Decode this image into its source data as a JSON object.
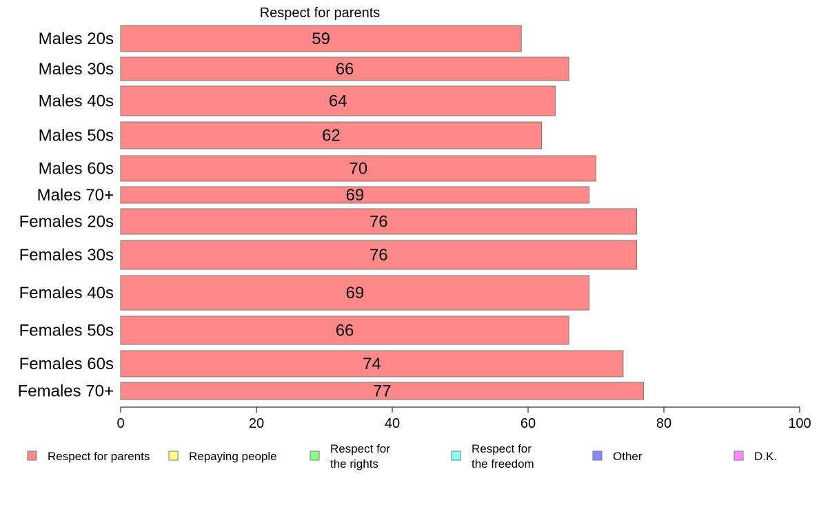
{
  "chart_data": {
    "type": "bar",
    "orientation": "horizontal",
    "title": "Respect for parents",
    "categories": [
      "Males 20s",
      "Males 30s",
      "Males 40s",
      "Males 50s",
      "Males 60s",
      "Males 70+",
      "Females 20s",
      "Females 30s",
      "Females 40s",
      "Females 50s",
      "Females 60s",
      "Females 70+"
    ],
    "series": [
      {
        "name": "Respect for parents",
        "color": "#ff8888",
        "values": [
          59,
          66,
          64,
          62,
          70,
          69,
          76,
          76,
          69,
          66,
          74,
          77
        ]
      }
    ],
    "xlim": [
      0,
      100
    ],
    "xticks": [
      "0",
      "20",
      "40",
      "60",
      "80",
      "100"
    ],
    "grid": false,
    "legend_position": "bottom",
    "legend": [
      {
        "label": "Respect for parents",
        "color": "#ff8888"
      },
      {
        "label": "Repaying people",
        "color": "#ffff88"
      },
      {
        "label": "Respect for\nthe rights",
        "color": "#88ff88"
      },
      {
        "label": "Respect for\nthe freedom",
        "color": "#88ffff"
      },
      {
        "label": "Other",
        "color": "#8888ff"
      },
      {
        "label": "D.K.",
        "color": "#ff88ff"
      }
    ]
  }
}
